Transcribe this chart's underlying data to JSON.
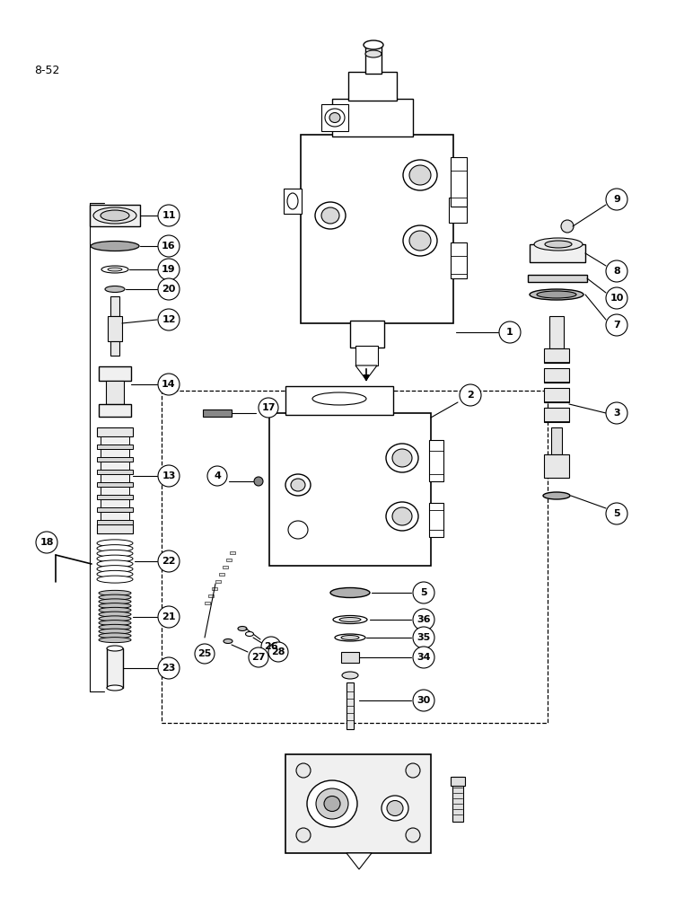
{
  "page_label": "8-52",
  "bg": "#ffffff",
  "lc": "#000000",
  "figsize": [
    7.72,
    10.0
  ],
  "dpi": 100
}
